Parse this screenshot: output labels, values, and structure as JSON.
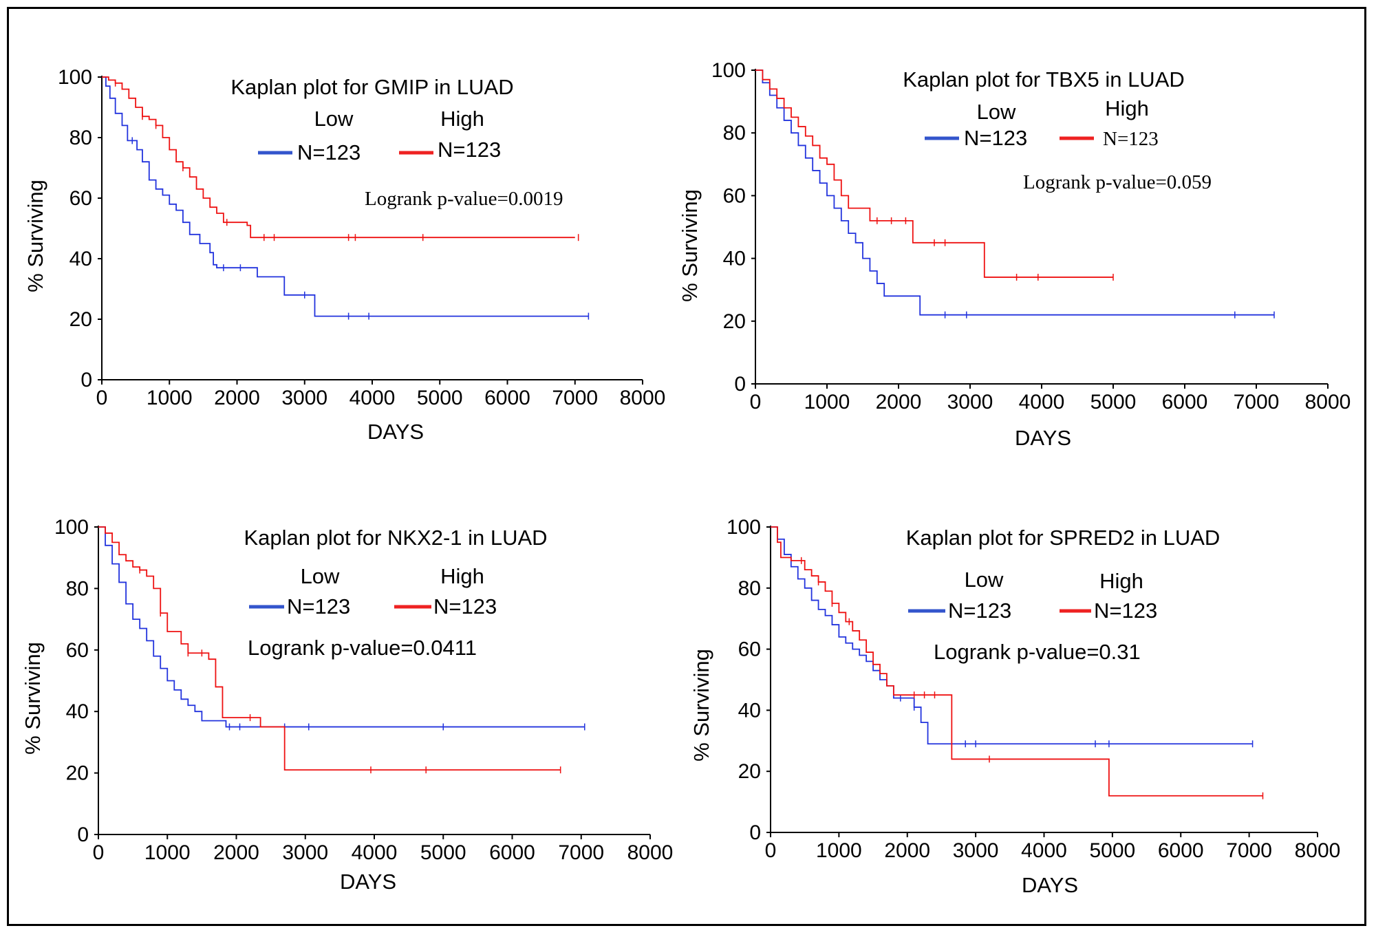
{
  "colors": {
    "low": "#2233dd",
    "high": "#ee1111",
    "legend_low": "#3355cc",
    "legend_high": "#ee2222",
    "axis": "#000000"
  },
  "chart_data": [
    {
      "type": "line",
      "title": "Kaplan plot for GMIP in LUAD",
      "xlabel": "DAYS",
      "ylabel": "% Surviving",
      "xlim": [
        0,
        8000
      ],
      "ylim": [
        0,
        100
      ],
      "xticks": [
        "0",
        "1000",
        "2000",
        "3000",
        "4000",
        "5000",
        "6000",
        "7000",
        "8000"
      ],
      "yticks": [
        "0",
        "20",
        "40",
        "60",
        "80",
        "100"
      ],
      "legend": {
        "low_label": "Low",
        "high_label": "High",
        "low_n": "N=123",
        "high_n": "N=123"
      },
      "pvalue": "Logrank p-value=0.0019",
      "series": [
        {
          "name": "Low",
          "color": "#2233dd",
          "x": [
            0,
            60,
            120,
            200,
            300,
            380,
            450,
            520,
            600,
            700,
            800,
            900,
            1000,
            1100,
            1200,
            1300,
            1450,
            1600,
            1650,
            1700,
            2000,
            2300,
            2650,
            2700,
            3000,
            3150,
            3600,
            3900,
            7200
          ],
          "y": [
            100,
            97,
            93,
            88,
            84,
            79,
            79,
            76,
            72,
            66,
            63,
            61,
            58,
            56,
            52,
            48,
            45,
            42,
            38,
            37,
            37,
            34,
            34,
            28,
            28,
            21,
            21,
            21,
            21
          ],
          "censor_x": [
            450,
            1800,
            2050,
            3000,
            3650,
            3950,
            7200
          ]
        },
        {
          "name": "High",
          "color": "#ee1111",
          "x": [
            0,
            100,
            200,
            300,
            400,
            500,
            600,
            700,
            800,
            900,
            1000,
            1100,
            1200,
            1300,
            1400,
            1500,
            1600,
            1700,
            1800,
            2000,
            2150,
            2200,
            7000
          ],
          "y": [
            100,
            99,
            98,
            96,
            93,
            90,
            87,
            86,
            84,
            80,
            76,
            72,
            70,
            67,
            63,
            60,
            57,
            55,
            52,
            52,
            51,
            47,
            47
          ],
          "censor_x": [
            200,
            600,
            800,
            1200,
            1850,
            2400,
            2550,
            3650,
            3750,
            4750,
            7050
          ]
        }
      ]
    },
    {
      "type": "line",
      "title": "Kaplan plot for TBX5 in LUAD",
      "xlabel": "DAYS",
      "ylabel": "% Surviving",
      "xlim": [
        0,
        8000
      ],
      "ylim": [
        0,
        100
      ],
      "xticks": [
        "0",
        "1000",
        "2000",
        "3000",
        "4000",
        "5000",
        "6000",
        "7000",
        "8000"
      ],
      "yticks": [
        "0",
        "20",
        "40",
        "60",
        "80",
        "100"
      ],
      "legend": {
        "low_label": "Low",
        "high_label": "High",
        "low_n": "N=123",
        "high_n": "N=123"
      },
      "pvalue": "Logrank p-value=0.059",
      "series": [
        {
          "name": "Low",
          "color": "#2233dd",
          "x": [
            0,
            100,
            200,
            300,
            400,
            500,
            600,
            700,
            800,
            900,
            1000,
            1100,
            1200,
            1300,
            1400,
            1500,
            1600,
            1700,
            1800,
            2300,
            7250
          ],
          "y": [
            100,
            96,
            92,
            88,
            84,
            80,
            76,
            72,
            68,
            64,
            60,
            56,
            52,
            48,
            45,
            40,
            36,
            32,
            28,
            22,
            22
          ],
          "censor_x": [
            2650,
            2950,
            6700,
            7250
          ]
        },
        {
          "name": "High",
          "color": "#ee1111",
          "x": [
            0,
            100,
            200,
            300,
            400,
            500,
            600,
            700,
            800,
            900,
            1000,
            1100,
            1200,
            1300,
            1400,
            1600,
            2150,
            2200,
            3150,
            3200,
            5000
          ],
          "y": [
            100,
            97,
            94,
            91,
            88,
            85,
            82,
            79,
            76,
            72,
            70,
            65,
            60,
            56,
            56,
            52,
            52,
            45,
            45,
            34,
            34
          ],
          "censor_x": [
            1700,
            1900,
            2100,
            2500,
            2650,
            3650,
            3950,
            5000
          ]
        }
      ]
    },
    {
      "type": "line",
      "title": "Kaplan plot for NKX2-1 in LUAD",
      "xlabel": "DAYS",
      "ylabel": "% Surviving",
      "xlim": [
        0,
        8000
      ],
      "ylim": [
        0,
        100
      ],
      "xticks": [
        "0",
        "1000",
        "2000",
        "3000",
        "4000",
        "5000",
        "6000",
        "7000",
        "8000"
      ],
      "yticks": [
        "0",
        "20",
        "40",
        "60",
        "80",
        "100"
      ],
      "legend": {
        "low_label": "Low",
        "high_label": "High",
        "low_n": "N=123",
        "high_n": "N=123"
      },
      "pvalue": "Logrank p-value=0.0411",
      "series": [
        {
          "name": "Low",
          "color": "#2233dd",
          "x": [
            0,
            100,
            200,
            300,
            400,
            500,
            600,
            700,
            800,
            900,
            1000,
            1100,
            1200,
            1300,
            1400,
            1500,
            1700,
            1850,
            7050
          ],
          "y": [
            100,
            94,
            88,
            82,
            75,
            70,
            67,
            63,
            58,
            54,
            50,
            47,
            44,
            42,
            40,
            37,
            37,
            35,
            35
          ],
          "censor_x": [
            1900,
            2050,
            2700,
            3050,
            5000,
            7050
          ]
        },
        {
          "name": "High",
          "color": "#ee1111",
          "x": [
            0,
            100,
            200,
            300,
            400,
            500,
            600,
            700,
            800,
            900,
            1000,
            1100,
            1200,
            1300,
            1400,
            1600,
            1700,
            1800,
            2350,
            2650,
            2700,
            6700
          ],
          "y": [
            100,
            98,
            95,
            91,
            89,
            87,
            86,
            84,
            80,
            72,
            66,
            66,
            62,
            59,
            59,
            57,
            48,
            38,
            35,
            35,
            21,
            21
          ],
          "censor_x": [
            600,
            900,
            1300,
            1500,
            2200,
            3950,
            4750,
            6700
          ]
        }
      ]
    },
    {
      "type": "line",
      "title": "Kaplan plot for SPRED2 in LUAD",
      "xlabel": "DAYS",
      "ylabel": "% Surviving",
      "xlim": [
        0,
        8000
      ],
      "ylim": [
        0,
        100
      ],
      "xticks": [
        "0",
        "1000",
        "2000",
        "3000",
        "4000",
        "5000",
        "6000",
        "7000",
        "8000"
      ],
      "yticks": [
        "0",
        "20",
        "40",
        "60",
        "80",
        "100"
      ],
      "legend": {
        "low_label": "Low",
        "high_label": "High",
        "low_n": "N=123",
        "high_n": "N=123"
      },
      "pvalue": "Logrank p-value=0.31",
      "series": [
        {
          "name": "Low",
          "color": "#2233dd",
          "x": [
            0,
            100,
            200,
            300,
            400,
            500,
            600,
            700,
            800,
            900,
            1000,
            1100,
            1200,
            1300,
            1400,
            1500,
            1600,
            1700,
            1800,
            2100,
            2200,
            2300,
            7050
          ],
          "y": [
            100,
            96,
            91,
            87,
            83,
            80,
            76,
            73,
            71,
            68,
            64,
            62,
            60,
            58,
            56,
            53,
            50,
            48,
            44,
            41,
            36,
            29,
            29
          ],
          "censor_x": [
            1900,
            2100,
            2850,
            3000,
            4750,
            4950,
            7050
          ]
        },
        {
          "name": "High",
          "color": "#ee1111",
          "x": [
            0,
            100,
            150,
            300,
            500,
            600,
            700,
            800,
            900,
            1000,
            1100,
            1200,
            1300,
            1400,
            1500,
            1600,
            1700,
            1800,
            2600,
            2650,
            4950,
            7200
          ],
          "y": [
            100,
            95,
            90,
            89,
            86,
            84,
            82,
            79,
            75,
            72,
            69,
            66,
            63,
            59,
            55,
            52,
            48,
            45,
            45,
            24,
            12,
            12
          ],
          "censor_x": [
            450,
            700,
            900,
            1150,
            2100,
            2250,
            2400,
            3200,
            7200
          ]
        }
      ]
    }
  ]
}
